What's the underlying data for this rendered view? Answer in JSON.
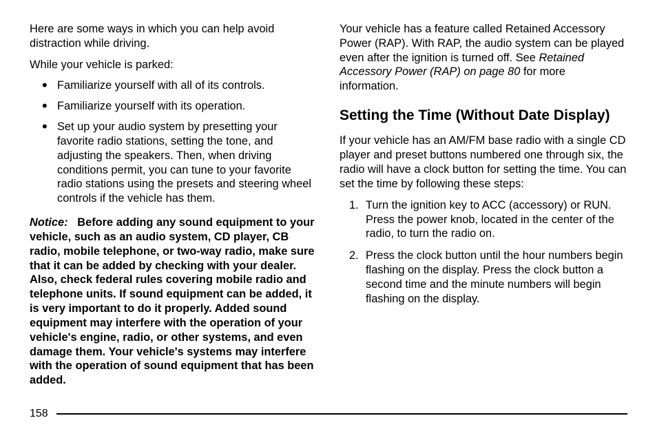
{
  "left": {
    "intro": "Here are some ways in which you can help avoid distraction while driving.",
    "parkedLine": "While your vehicle is parked:",
    "bullets": [
      "Familiarize yourself with all of its controls.",
      "Familiarize yourself with its operation.",
      "Set up your audio system by presetting your favorite radio stations, setting the tone, and adjusting the speakers. Then, when driving conditions permit, you can tune to your favorite radio stations using the presets and steering wheel controls if the vehicle has them."
    ],
    "noticeLabel": "Notice:",
    "noticeBody": "Before adding any sound equipment to your vehicle, such as an audio system, CD player, CB radio, mobile telephone, or two-way radio, make sure that it can be added by checking with your dealer. Also, check federal rules covering mobile radio and telephone units. If sound equipment can be added, it is very important to do it properly. Added sound equipment may interfere with the operation of your vehicle's engine, radio, or other systems, and even damage them. Your vehicle's systems may interfere with the operation of sound equipment that has been added."
  },
  "right": {
    "rapPre": "Your vehicle has a feature called Retained Accessory Power (RAP). With RAP, the audio system can be played even after the ignition is turned off. See ",
    "rapItalic": "Retained Accessory Power (RAP) on page 80 ",
    "rapPost": "for more information.",
    "heading": "Setting the Time (Without Date Display)",
    "intro": "If your vehicle has an AM/FM base radio with a single CD player and preset buttons numbered one through six, the radio will have a clock button for setting the time. You can set the time by following these steps:",
    "steps": [
      "Turn the ignition key to ACC (accessory) or RUN. Press the power knob, located in the center of the radio, to turn the radio on.",
      "Press the clock button until the hour numbers begin flashing on the display. Press the clock button a second time and the minute numbers will begin flashing on the display."
    ]
  },
  "pageNumber": "158"
}
